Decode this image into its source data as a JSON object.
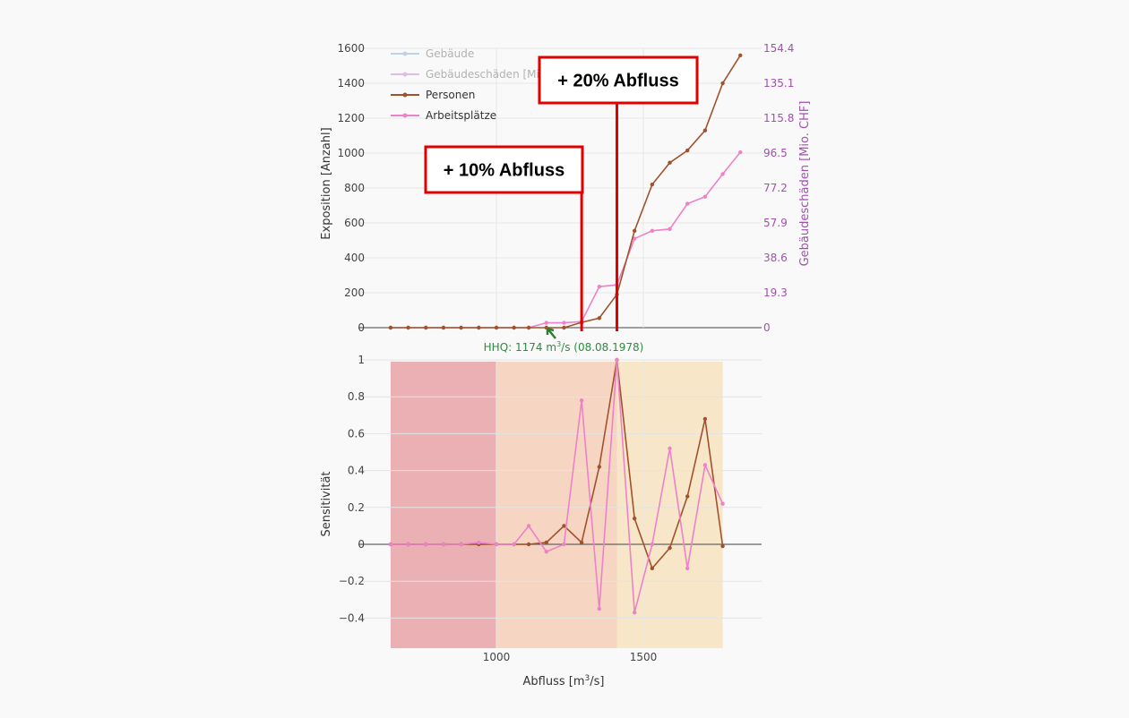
{
  "chart_data": [
    {
      "type": "line",
      "panel": "exposure",
      "ylabel": "Exposition [Anzahl]",
      "y2label": "Gebäudeschäden [Mio. CHF]",
      "ylim": [
        0,
        1600
      ],
      "yticks": [
        "0",
        "200",
        "400",
        "600",
        "800",
        "1000",
        "1200",
        "1400",
        "1600"
      ],
      "y2ticks": [
        "0",
        "19.3",
        "38.6",
        "57.9",
        "77.2",
        "96.5",
        "115.8",
        "135.1",
        "154.4"
      ],
      "legend_position": "top-left",
      "series": [
        {
          "name": "Gebäude",
          "color": "#8fb4d6",
          "visible": false,
          "x": [],
          "y": []
        },
        {
          "name": "Gebäudeschäden [Mio. CHF]",
          "color": "#c88fd0",
          "visible": false,
          "x": [],
          "y": []
        },
        {
          "name": "Personen",
          "color": "#a0522d",
          "visible": true,
          "x": [
            640,
            700,
            760,
            820,
            880,
            940,
            1000,
            1060,
            1110,
            1170,
            1230,
            1290,
            1350,
            1410,
            1470,
            1530,
            1590,
            1650,
            1710,
            1770,
            1830
          ],
          "y": [
            0,
            0,
            0,
            0,
            0,
            0,
            0,
            0,
            0,
            0,
            0,
            30,
            55,
            190,
            555,
            820,
            945,
            1015,
            1130,
            1400,
            1560
          ]
        },
        {
          "name": "Arbeitsplätze",
          "color": "#ee82c8",
          "visible": true,
          "x": [
            640,
            700,
            760,
            820,
            880,
            940,
            1000,
            1060,
            1110,
            1170,
            1230,
            1290,
            1350,
            1410,
            1470,
            1530,
            1590,
            1650,
            1710,
            1770,
            1830
          ],
          "y": [
            0,
            0,
            0,
            0,
            0,
            0,
            0,
            0,
            0,
            28,
            28,
            35,
            235,
            245,
            510,
            555,
            565,
            710,
            750,
            880,
            1005
          ]
        }
      ],
      "annotations": [
        {
          "label": "+ 10% Abfluss",
          "x": 1290
        },
        {
          "label": "+ 20% Abfluss",
          "x": 1410
        }
      ],
      "hhq": {
        "label_prefix": "HHQ: 1174 m",
        "label_sup": "3",
        "label_suffix": "/s (08.08.1978)",
        "x": 1174
      }
    },
    {
      "type": "line",
      "panel": "sensitivity",
      "ylabel": "Sensitivität",
      "xlabel_prefix": "Abfluss [m",
      "xlabel_sup": "3",
      "xlabel_suffix": "/s]",
      "ylim": [
        -0.57,
        1
      ],
      "xticks": [
        "1000",
        "1500"
      ],
      "yticks": [
        "−0.4",
        "−0.2",
        "0",
        "0.2",
        "0.4",
        "0.6",
        "0.8",
        "1"
      ],
      "bands": [
        {
          "x0": 640,
          "x1": 1000,
          "color": "#eab0b3"
        },
        {
          "x0": 1000,
          "x1": 1410,
          "color": "#f6d5c3"
        },
        {
          "x0": 1410,
          "x1": 1770,
          "color": "#f8e6c8"
        }
      ],
      "series": [
        {
          "name": "Personen",
          "color": "#a0522d",
          "x": [
            640,
            700,
            760,
            820,
            880,
            940,
            1000,
            1060,
            1110,
            1170,
            1230,
            1290,
            1350,
            1410,
            1470,
            1530,
            1590,
            1650,
            1710,
            1770
          ],
          "y": [
            0,
            0,
            0,
            0,
            0,
            0,
            0,
            0,
            0,
            0.01,
            0.1,
            0.01,
            0.42,
            1.0,
            0.14,
            -0.13,
            -0.02,
            0.26,
            0.68,
            -0.01
          ]
        },
        {
          "name": "Arbeitsplätze",
          "color": "#ee82c8",
          "x": [
            640,
            700,
            760,
            820,
            880,
            940,
            1000,
            1060,
            1110,
            1170,
            1230,
            1290,
            1350,
            1410,
            1470,
            1530,
            1590,
            1650,
            1710,
            1770
          ],
          "y": [
            0,
            0,
            0,
            0,
            0,
            0.01,
            0,
            0,
            0.1,
            -0.04,
            0,
            0.78,
            -0.35,
            1.0,
            -0.37,
            0,
            0.52,
            -0.13,
            0.43,
            0.22
          ]
        }
      ]
    }
  ]
}
